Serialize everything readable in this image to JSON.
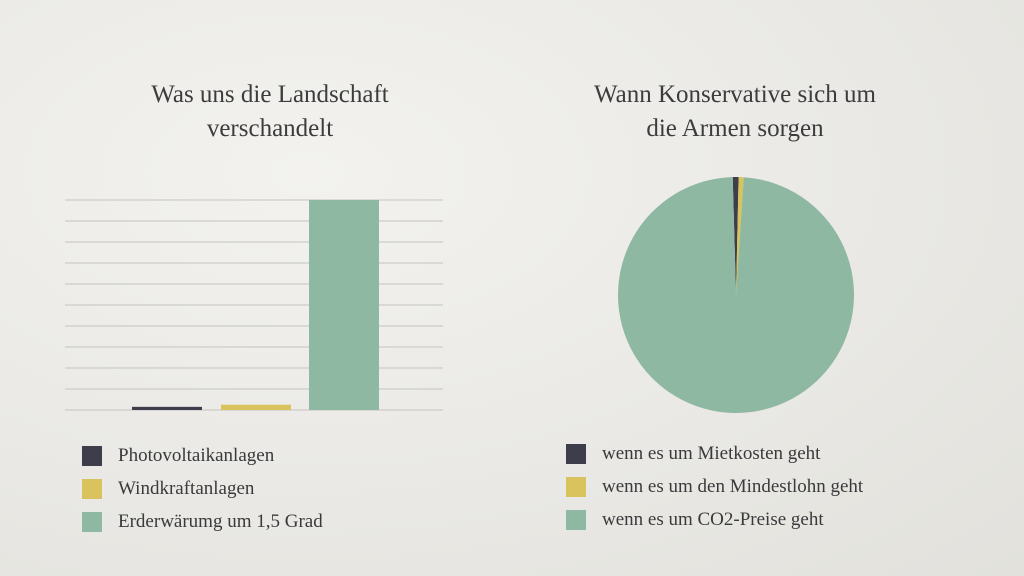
{
  "charts": {
    "left": {
      "title_line1": "Was uns die Landschaft",
      "title_line2": "verschandelt"
    },
    "right": {
      "title_line1": "Wann Konservative sich um",
      "title_line2": "die Armen sorgen"
    }
  },
  "chart_data": [
    {
      "type": "bar",
      "title": "Was uns die Landschaft verschandelt",
      "categories": [
        "Photovoltaikanlagen",
        "Windkraftanlagen",
        "Erderwärumg um 1,5 Grad"
      ],
      "values": [
        1.5,
        2.5,
        100
      ],
      "ylim": [
        0,
        100
      ],
      "grid": true,
      "gridlines": 11,
      "colors": [
        "#3d3d4b",
        "#d8c35c",
        "#8fb8a3"
      ],
      "legend": "bottom",
      "legend_entries": [
        "Photovoltaikanlagen",
        "Windkraftanlagen",
        "Erderwärumg um 1,5 Grad"
      ]
    },
    {
      "type": "pie",
      "title": "Wann Konservative sich um die Armen sorgen",
      "labels": [
        "wenn es um Mietkosten geht",
        "wenn es um den Mindestlohn geht",
        "wenn es um CO2-Preise geht"
      ],
      "values": [
        0.8,
        0.7,
        98.5
      ],
      "colors": [
        "#3d3d4b",
        "#d8c35c",
        "#8fb8a3"
      ],
      "legend": "bottom",
      "legend_entries": [
        "wenn es um Mietkosten geht",
        "wenn es um den Mindestlohn geht",
        "wenn es um CO2-Preise geht"
      ]
    }
  ]
}
